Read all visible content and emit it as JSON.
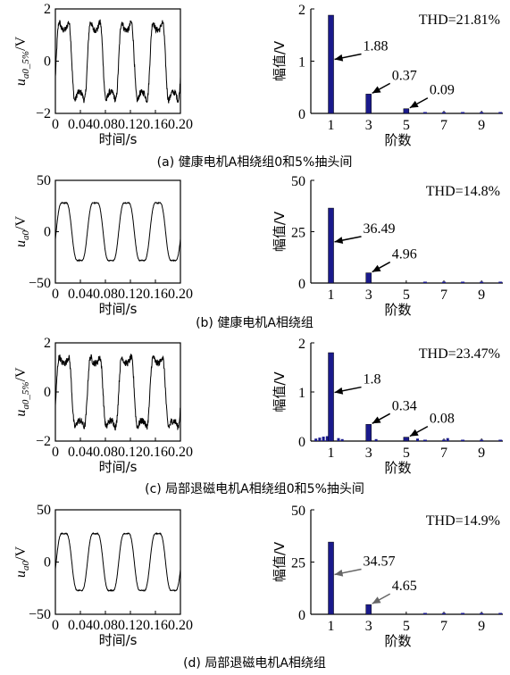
{
  "panels": [
    {
      "caption": "(a)  健康电机A相绕组0和5%抽头间",
      "wave": {
        "type": "line",
        "ylabel_main": "u",
        "ylabel_sub": "a0_5%",
        "ylabel_unit": "/V",
        "xlabel": "时间/s",
        "xticks": [
          "0",
          "0.04",
          "0.08",
          "0.12",
          "0.16",
          "0.20"
        ],
        "xlim": [
          0,
          0.2
        ],
        "yticks": [
          "−2",
          "0",
          "2"
        ],
        "ylim": [
          -2,
          2
        ],
        "amplitude": 1.7,
        "frequency_hz": 20,
        "harmonics": [
          [
            3,
            0.35
          ],
          [
            5,
            0.09
          ]
        ],
        "noise": 0.12
      },
      "spectrum": {
        "type": "bar",
        "ylabel": "幅值/V",
        "xlabel": "阶数",
        "xticks": [
          "1",
          "3",
          "5",
          "7",
          "9"
        ],
        "yticks": [
          "0",
          "1",
          "2"
        ],
        "ylim": [
          0,
          2
        ],
        "orders": [
          1,
          3,
          5
        ],
        "values": [
          1.88,
          0.37,
          0.09
        ],
        "labels": [
          "1.88",
          "0.37",
          "0.09"
        ],
        "thd": "THD=21.81%",
        "bar_color": "#1a1a8c",
        "arrow_color": "#000000"
      }
    },
    {
      "caption": "(b)  健康电机A相绕组",
      "wave": {
        "type": "line",
        "ylabel_main": "u",
        "ylabel_sub": "a0",
        "ylabel_unit": "/V",
        "xlabel": "时间/s",
        "xticks": [
          "0",
          "0.04",
          "0.08",
          "0.12",
          "0.16",
          "0.20"
        ],
        "xlim": [
          0,
          0.2
        ],
        "yticks": [
          "−50",
          "0",
          "50"
        ],
        "ylim": [
          -50,
          50
        ],
        "amplitude": 34,
        "frequency_hz": 20,
        "harmonics": [
          [
            3,
            0.14
          ]
        ],
        "noise": 0.02
      },
      "spectrum": {
        "type": "bar",
        "ylabel": "幅值/V",
        "xlabel": "阶数",
        "xticks": [
          "1",
          "3",
          "5",
          "7",
          "9"
        ],
        "yticks": [
          "0",
          "25",
          "50"
        ],
        "ylim": [
          0,
          50
        ],
        "orders": [
          1,
          3
        ],
        "values": [
          36.49,
          4.96
        ],
        "labels": [
          "36.49",
          "4.96"
        ],
        "thd": "THD=14.8%",
        "bar_color": "#1a1a8c",
        "arrow_color": "#000000"
      }
    },
    {
      "caption": "(c)  局部退磁电机A相绕组0和5%抽头间",
      "wave": {
        "type": "line",
        "ylabel_main": "u",
        "ylabel_sub": "a0_5%",
        "ylabel_unit": "/V",
        "xlabel": "时间/s",
        "xticks": [
          "0",
          "0.04",
          "0.08",
          "0.12",
          "0.16",
          "0.20"
        ],
        "xlim": [
          0,
          0.2
        ],
        "yticks": [
          "−2",
          "0",
          "2"
        ],
        "ylim": [
          -2,
          2
        ],
        "amplitude": 1.65,
        "frequency_hz": 20,
        "harmonics": [
          [
            3,
            0.33
          ],
          [
            5,
            0.08
          ]
        ],
        "noise": 0.14
      },
      "spectrum": {
        "type": "bar",
        "ylabel": "幅值/V",
        "xlabel": "阶数",
        "xticks": [
          "1",
          "3",
          "5",
          "7",
          "9"
        ],
        "yticks": [
          "0",
          "1",
          "2"
        ],
        "ylim": [
          0,
          2
        ],
        "orders": [
          1,
          3,
          5
        ],
        "values": [
          1.8,
          0.34,
          0.08
        ],
        "labels": [
          "1.8",
          "0.34",
          "0.08"
        ],
        "thd": "THD=23.47%",
        "bar_color": "#1a1a8c",
        "arrow_color": "#000000",
        "minor_orders": [
          0.2,
          0.4,
          0.6,
          0.8,
          1.4,
          1.6,
          3.4,
          5.6,
          7.2
        ],
        "minor_values": [
          0.05,
          0.07,
          0.09,
          0.1,
          0.06,
          0.04,
          0.04,
          0.05,
          0.06
        ]
      }
    },
    {
      "caption": "(d)  局部退磁电机A相绕组",
      "wave": {
        "type": "line",
        "ylabel_main": "u",
        "ylabel_sub": "a0",
        "ylabel_unit": "/V",
        "xlabel": "时间/s",
        "xticks": [
          "0",
          "0.04",
          "0.08",
          "0.12",
          "0.16",
          "0.20"
        ],
        "xlim": [
          0,
          0.2
        ],
        "yticks": [
          "−50",
          "0",
          "50"
        ],
        "ylim": [
          -50,
          50
        ],
        "amplitude": 33,
        "frequency_hz": 20,
        "harmonics": [
          [
            3,
            0.14
          ]
        ],
        "noise": 0.02
      },
      "spectrum": {
        "type": "bar",
        "ylabel": "幅值/V",
        "xlabel": "阶数",
        "xticks": [
          "1",
          "3",
          "5",
          "7",
          "9"
        ],
        "yticks": [
          "0",
          "25",
          "50"
        ],
        "ylim": [
          0,
          50
        ],
        "orders": [
          1,
          3
        ],
        "values": [
          34.57,
          4.65
        ],
        "labels": [
          "34.57",
          "4.65"
        ],
        "thd": "THD=14.9%",
        "bar_color": "#1a1a8c",
        "arrow_color": "#666666"
      }
    }
  ],
  "chart_data": [
    {
      "type": "bar",
      "panel": "a",
      "categories": [
        "1",
        "3",
        "5"
      ],
      "values": [
        1.88,
        0.37,
        0.09
      ],
      "ylabel": "幅值/V",
      "xlabel": "阶数",
      "ylim": [
        0,
        2
      ],
      "annotation": "THD=21.81%"
    },
    {
      "type": "bar",
      "panel": "b",
      "categories": [
        "1",
        "3"
      ],
      "values": [
        36.49,
        4.96
      ],
      "ylabel": "幅值/V",
      "xlabel": "阶数",
      "ylim": [
        0,
        50
      ],
      "annotation": "THD=14.8%"
    },
    {
      "type": "bar",
      "panel": "c",
      "categories": [
        "1",
        "3",
        "5"
      ],
      "values": [
        1.8,
        0.34,
        0.08
      ],
      "ylabel": "幅值/V",
      "xlabel": "阶数",
      "ylim": [
        0,
        2
      ],
      "annotation": "THD=23.47%"
    },
    {
      "type": "bar",
      "panel": "d",
      "categories": [
        "1",
        "3"
      ],
      "values": [
        34.57,
        4.65
      ],
      "ylabel": "幅值/V",
      "xlabel": "阶数",
      "ylim": [
        0,
        50
      ],
      "annotation": "THD=14.9%"
    },
    {
      "type": "line",
      "panel": "a",
      "xlabel": "时间/s",
      "xlim": [
        0,
        0.2
      ],
      "ylim": [
        -2,
        2
      ]
    },
    {
      "type": "line",
      "panel": "b",
      "xlabel": "时间/s",
      "xlim": [
        0,
        0.2
      ],
      "ylim": [
        -50,
        50
      ]
    },
    {
      "type": "line",
      "panel": "c",
      "xlabel": "时间/s",
      "xlim": [
        0,
        0.2
      ],
      "ylim": [
        -2,
        2
      ]
    },
    {
      "type": "line",
      "panel": "d",
      "xlabel": "时间/s",
      "xlim": [
        0,
        0.2
      ],
      "ylim": [
        -50,
        50
      ]
    }
  ]
}
